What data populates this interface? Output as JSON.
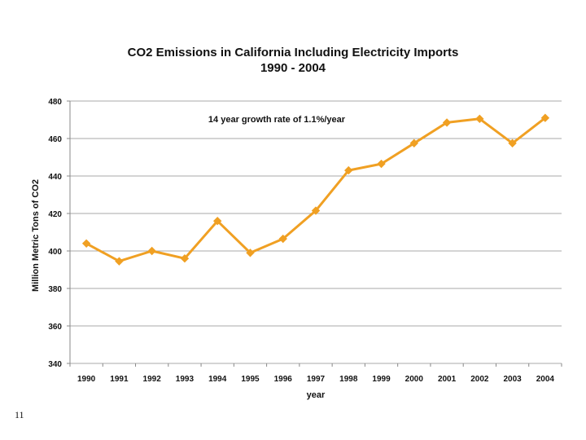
{
  "page_number": "11",
  "chart_data": {
    "type": "line",
    "title": "CO2 Emissions in California Including Electricity Imports",
    "subtitle": "1990 - 2004",
    "xlabel": "year",
    "ylabel": "Million Metric Tons of CO2",
    "annotation": "14 year growth rate of 1.1%/year",
    "categories": [
      "1990",
      "1991",
      "1992",
      "1993",
      "1994",
      "1995",
      "1996",
      "1997",
      "1998",
      "1999",
      "2000",
      "2001",
      "2002",
      "2003",
      "2004"
    ],
    "series": [
      {
        "values": [
          404,
          394.5,
          400,
          396,
          416,
          399,
          406.5,
          421.5,
          443,
          446.5,
          457.5,
          468.5,
          470.5,
          457.5,
          471
        ],
        "color": "#F0A023"
      }
    ],
    "ylim": [
      340,
      480
    ],
    "yticks": [
      "340",
      "360",
      "380",
      "400",
      "420",
      "440",
      "460",
      "480"
    ],
    "grid": true,
    "gridline_color": "#aaaaaa",
    "marker": "diamond"
  }
}
